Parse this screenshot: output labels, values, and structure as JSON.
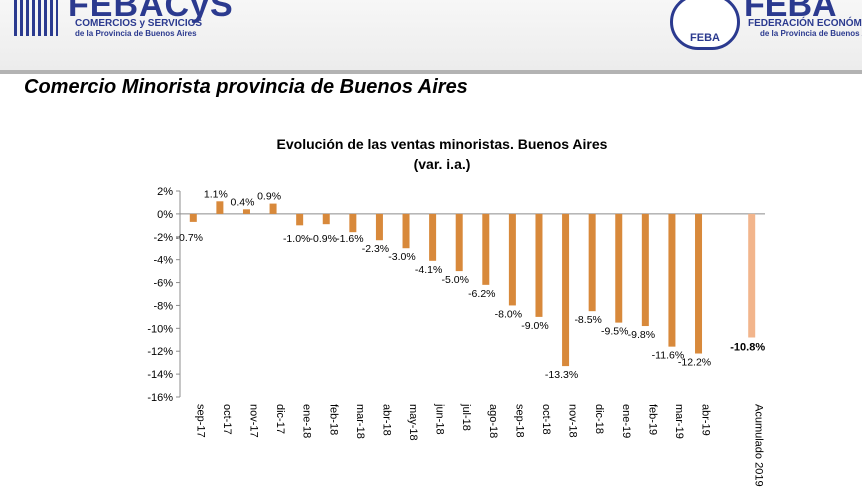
{
  "header": {
    "left_logo": {
      "name": "FEBACyS",
      "subtitle1": "COMERCIOS y SERVICIOS",
      "subtitle2": "de la Provincia de Buenos Aires"
    },
    "right_logo": {
      "seal": "FEBA",
      "name": "FEBA",
      "subtitle1": "FEDERACIÓN ECONÓMICA",
      "subtitle2": "de la Provincia de Buenos Aires"
    }
  },
  "page_title": "Comercio Minorista provincia de Buenos Aires",
  "chart_data": {
    "type": "bar",
    "title": "Evolución de las ventas minoristas. Buenos Aires",
    "subtitle": "(var. i.a.)",
    "categories": [
      "sep-17",
      "oct-17",
      "nov-17",
      "dic-17",
      "ene-18",
      "feb-18",
      "mar-18",
      "abr-18",
      "may-18",
      "jun-18",
      "jul-18",
      "ago-18",
      "sep-18",
      "oct-18",
      "nov-18",
      "dic-18",
      "ene-19",
      "feb-19",
      "mar-19",
      "abr-19",
      "",
      "Acumulado 2019"
    ],
    "values": [
      -0.7,
      1.1,
      0.4,
      0.9,
      -1.0,
      -0.9,
      -1.6,
      -2.3,
      -3.0,
      -4.1,
      -5.0,
      -6.2,
      -8.0,
      -9.0,
      -13.3,
      -8.5,
      -9.5,
      -9.8,
      -11.6,
      -12.2,
      null,
      -10.8
    ],
    "data_labels": [
      "-0.7%",
      "1.1%",
      "0.4%",
      "0.9%",
      "-1.0%",
      "-0.9%",
      "-1.6%",
      "-2.3%",
      "-3.0%",
      "-4.1%",
      "-5.0%",
      "-6.2%",
      "-8.0%",
      "-9.0%",
      "-13.3%",
      "-8.5%",
      "-9.5%",
      "-9.8%",
      "-11.6%",
      "-12.2%",
      "",
      "-10.8%"
    ],
    "highlight_index": 21,
    "ylim": [
      -16,
      2
    ],
    "yticks": [
      2,
      0,
      -2,
      -4,
      -6,
      -8,
      -10,
      -12,
      -14,
      -16
    ],
    "ytick_labels": [
      "2%",
      "0%",
      "-2%",
      "-4%",
      "-6%",
      "-8%",
      "-10%",
      "-12%",
      "-14%",
      "-16%"
    ],
    "grid": false,
    "legend": "none",
    "colors": {
      "bar": "#D8893B",
      "highlight_bar": "#F2B58C",
      "axis": "#8c8c8c"
    }
  }
}
